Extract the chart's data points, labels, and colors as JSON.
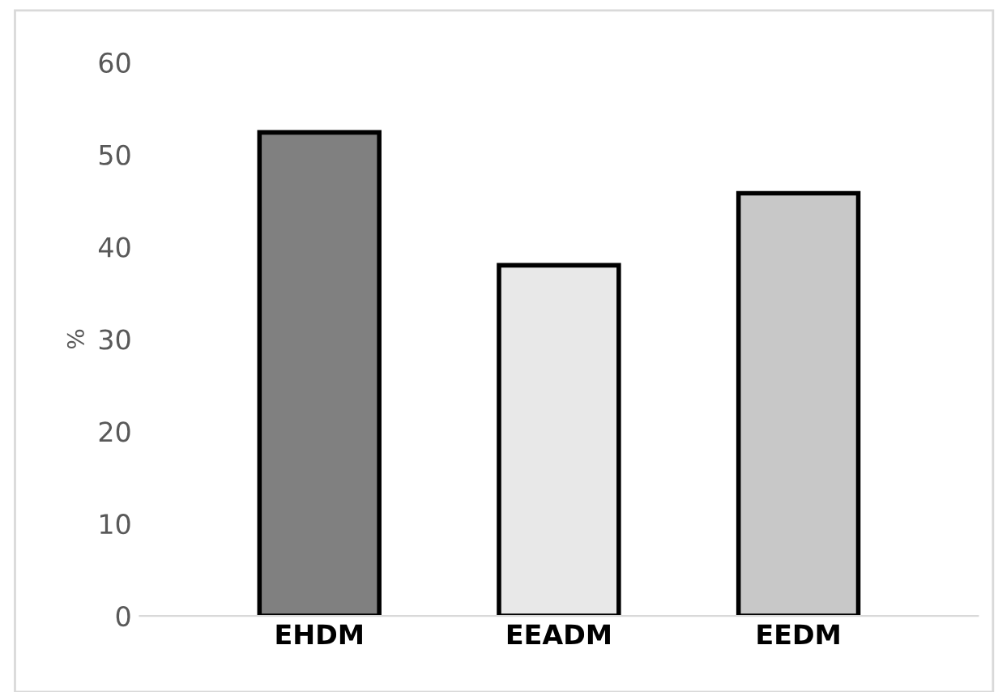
{
  "chart_data": {
    "type": "bar",
    "ylabel": "%",
    "categories": [
      "EHDM",
      "EEADM",
      "EEDM"
    ],
    "values": [
      52.4,
      38.0,
      45.8
    ],
    "colors": [
      "#808080",
      "#e8e8e8",
      "#c8c8c8"
    ],
    "ylim": [
      0,
      60
    ],
    "yticks": [
      0,
      10,
      20,
      30,
      40,
      50,
      60
    ],
    "grid": false
  }
}
